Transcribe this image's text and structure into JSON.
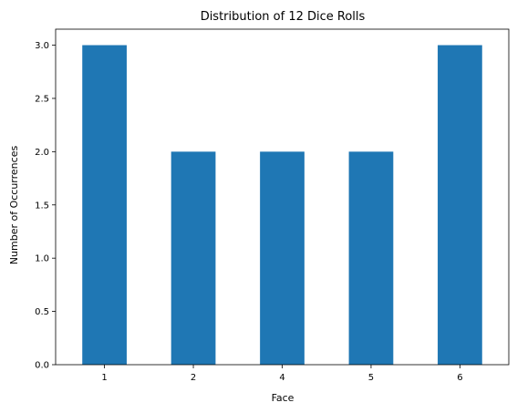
{
  "chart_data": {
    "type": "bar",
    "title": "Distribution of 12 Dice Rolls",
    "xlabel": "Face",
    "ylabel": "Number of Occurrences",
    "categories": [
      "1",
      "2",
      "4",
      "5",
      "6"
    ],
    "values": [
      3,
      2,
      2,
      2,
      3
    ],
    "ylim": [
      0,
      3.15
    ],
    "yticks": [
      "0.0",
      "0.5",
      "1.0",
      "1.5",
      "2.0",
      "2.5",
      "3.0"
    ],
    "bar_color": "#1f77b4",
    "grid": false,
    "legend": "none"
  }
}
